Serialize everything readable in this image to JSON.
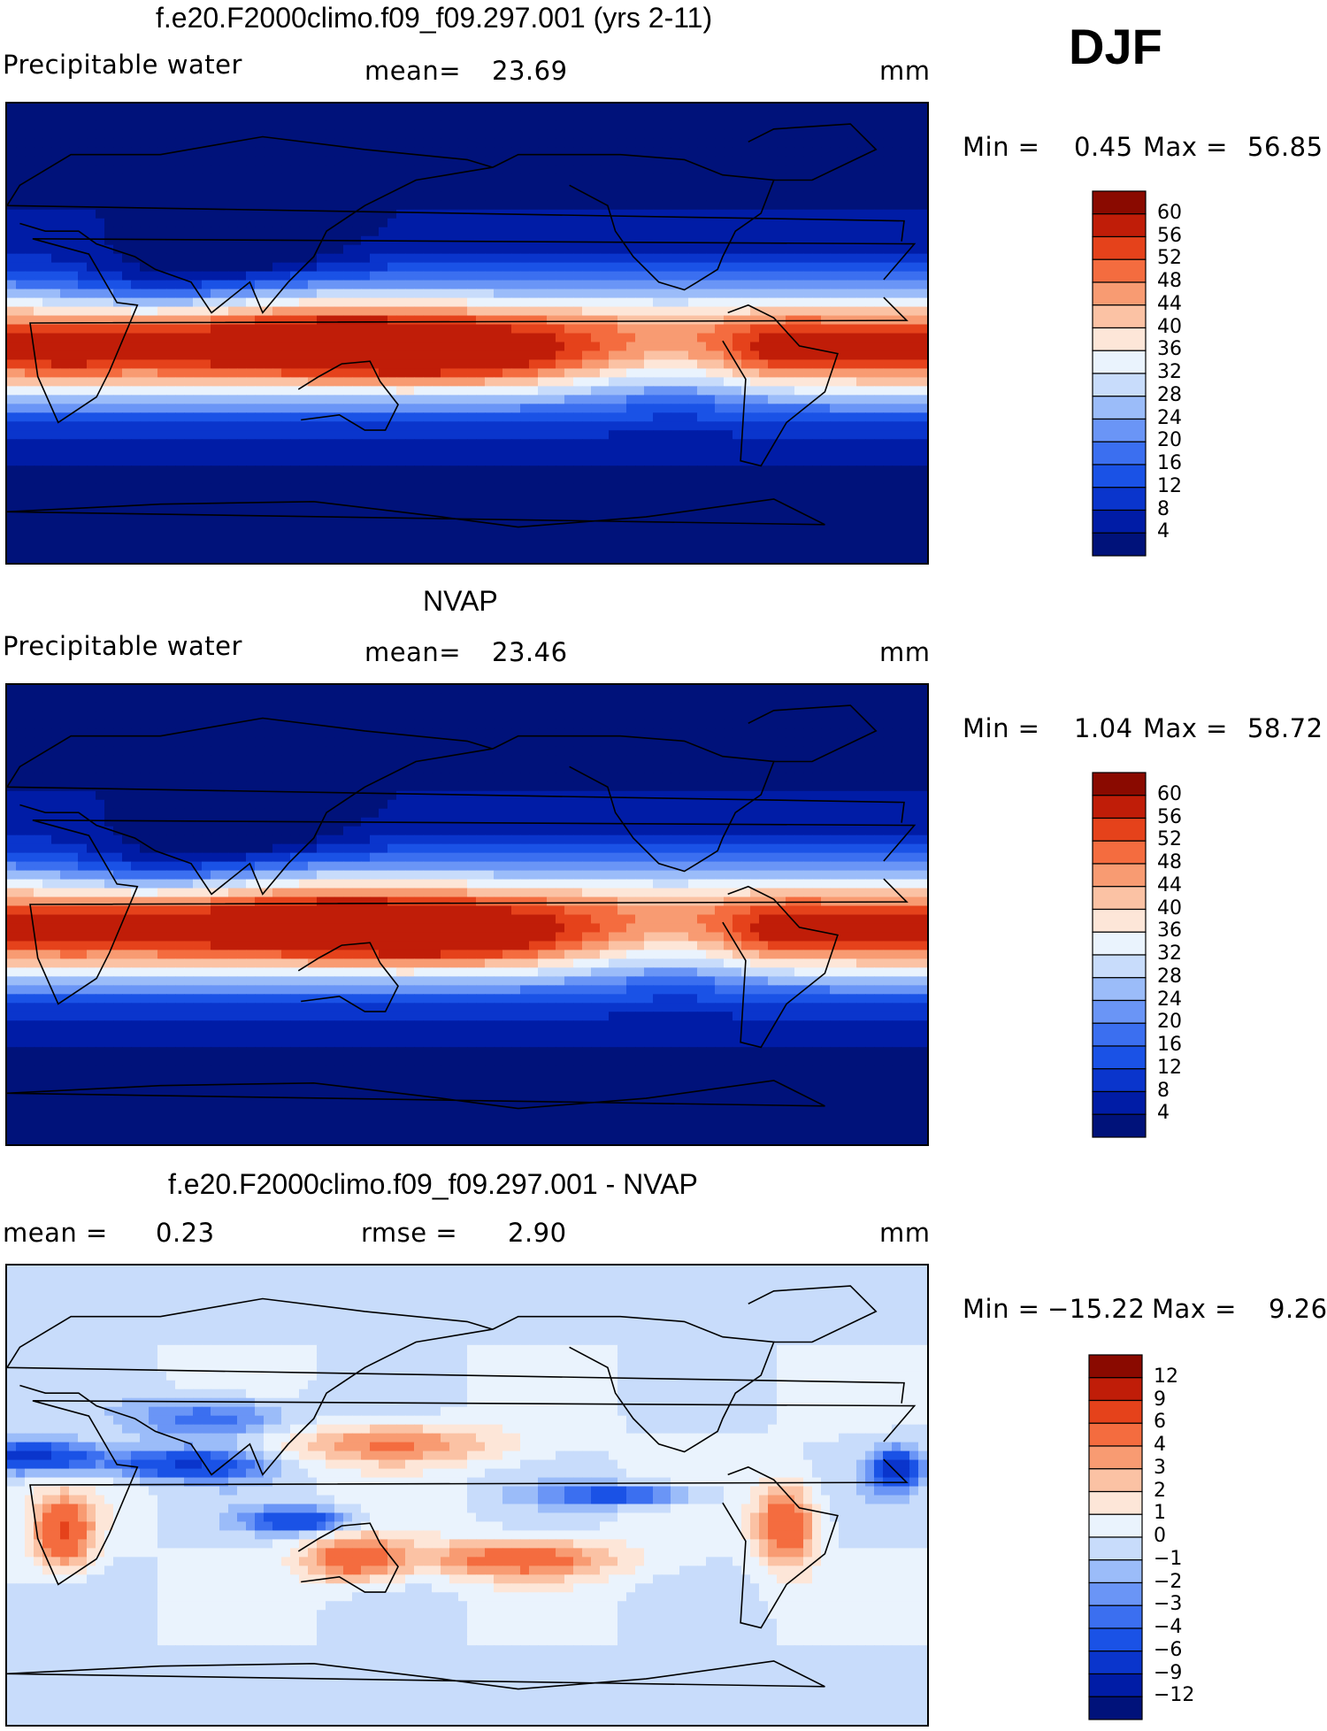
{
  "season": "DJF",
  "panels": [
    {
      "id": "model",
      "title": "f.e20.F2000climo.f09_f09.297.001 (yrs 2-11)",
      "left_label": "Precipitable water",
      "mid_label": "mean=",
      "mid_value": "23.69",
      "units": "mm",
      "min_label": "Min =",
      "min_value": "0.45",
      "max_label": "Max =",
      "max_value": "56.85"
    },
    {
      "id": "obs",
      "title": "NVAP",
      "left_label": "Precipitable water",
      "mid_label": "mean=",
      "mid_value": "23.46",
      "units": "mm",
      "min_label": "Min =",
      "min_value": "1.04",
      "max_label": "Max =",
      "max_value": "58.72"
    },
    {
      "id": "diff",
      "title": "f.e20.F2000climo.f09_f09.297.001 - NVAP",
      "left_label": "mean =",
      "left_value": "0.23",
      "mid_label": "rmse =",
      "mid_value": "2.90",
      "units": "mm",
      "min_label": "Min =",
      "min_value": "−15.22",
      "max_label": "Max =",
      "max_value": "9.26"
    }
  ],
  "chart_data": [
    {
      "type": "heatmap",
      "title": "f.e20.F2000climo.f09_f09.297.001 (yrs 2-11)",
      "variable": "Precipitable water",
      "units": "mm",
      "mean": 23.69,
      "min": 0.45,
      "max": 56.85,
      "colorbar_levels": [
        4,
        8,
        12,
        16,
        20,
        24,
        28,
        32,
        36,
        40,
        44,
        48,
        52,
        56,
        60
      ],
      "colorbar_labels": [
        "60",
        "56",
        "52",
        "48",
        "44",
        "40",
        "36",
        "32",
        "28",
        "24",
        "20",
        "16",
        "12",
        "8",
        "4"
      ],
      "colors": [
        "#00127a",
        "#001ca6",
        "#0a35cc",
        "#1a52e6",
        "#3b6ff0",
        "#6a95f6",
        "#9bbcf9",
        "#c8dcfb",
        "#eaf3fd",
        "#fde6d8",
        "#fbc2a4",
        "#f89b72",
        "#f46c3f",
        "#e5421b",
        "#c01d08",
        "#8a0a00"
      ]
    },
    {
      "type": "heatmap",
      "title": "NVAP",
      "variable": "Precipitable water",
      "units": "mm",
      "mean": 23.46,
      "min": 1.04,
      "max": 58.72,
      "colorbar_levels": [
        4,
        8,
        12,
        16,
        20,
        24,
        28,
        32,
        36,
        40,
        44,
        48,
        52,
        56,
        60
      ],
      "colorbar_labels": [
        "60",
        "56",
        "52",
        "48",
        "44",
        "40",
        "36",
        "32",
        "28",
        "24",
        "20",
        "16",
        "12",
        "8",
        "4"
      ],
      "colors": [
        "#00127a",
        "#001ca6",
        "#0a35cc",
        "#1a52e6",
        "#3b6ff0",
        "#6a95f6",
        "#9bbcf9",
        "#c8dcfb",
        "#eaf3fd",
        "#fde6d8",
        "#fbc2a4",
        "#f89b72",
        "#f46c3f",
        "#e5421b",
        "#c01d08",
        "#8a0a00"
      ]
    },
    {
      "type": "heatmap",
      "title": "f.e20.F2000climo.f09_f09.297.001 - NVAP",
      "units": "mm",
      "mean": 0.23,
      "rmse": 2.9,
      "min": -15.22,
      "max": 9.26,
      "colorbar_levels": [
        -12,
        -9,
        -6,
        -4,
        -3,
        -2,
        -1,
        0,
        1,
        2,
        3,
        4,
        6,
        9,
        12
      ],
      "colorbar_labels": [
        "12",
        "9",
        "6",
        "4",
        "3",
        "2",
        "1",
        "0",
        "−1",
        "−2",
        "−3",
        "−4",
        "−6",
        "−9",
        "−12"
      ],
      "colors": [
        "#00127a",
        "#001ca6",
        "#0a35cc",
        "#1a52e6",
        "#3b6ff0",
        "#6a95f6",
        "#9bbcf9",
        "#c8dcfb",
        "#eaf3fd",
        "#fde6d8",
        "#fbc2a4",
        "#f89b72",
        "#f46c3f",
        "#e5421b",
        "#c01d08",
        "#8a0a00"
      ]
    }
  ]
}
